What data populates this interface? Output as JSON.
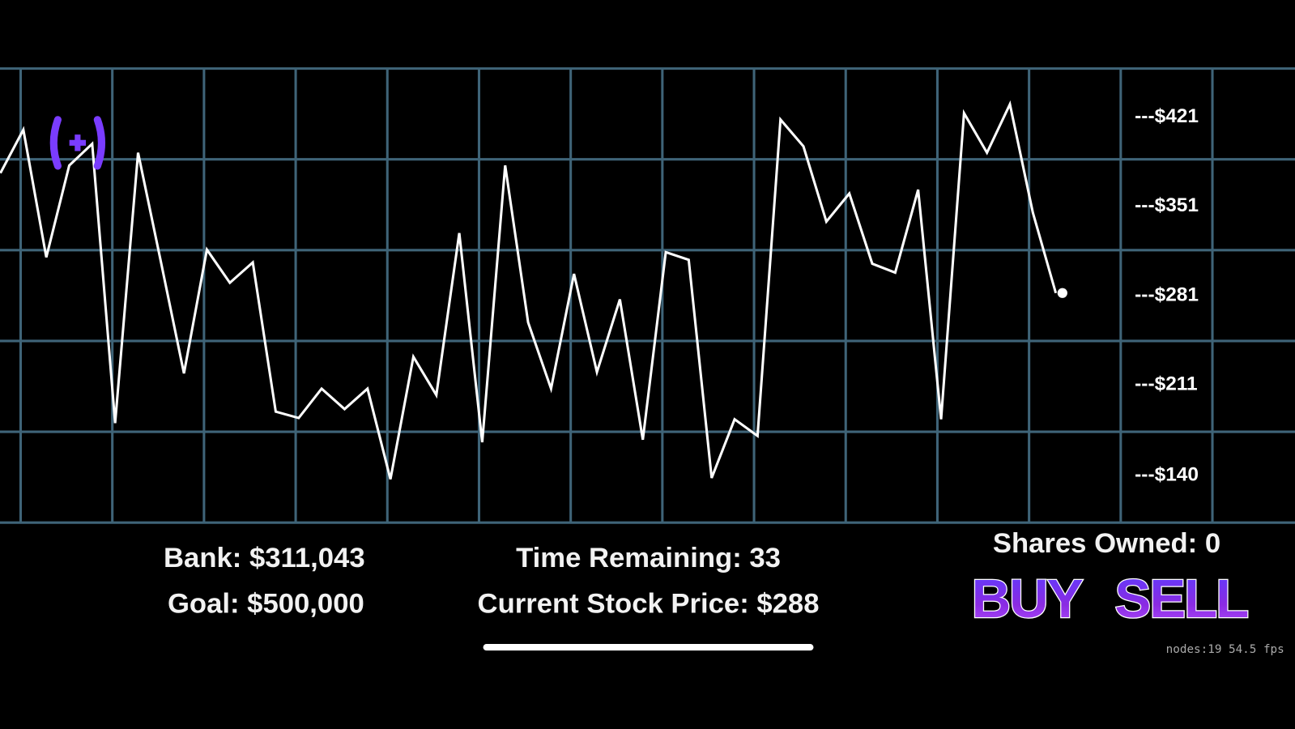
{
  "chart_data": {
    "type": "line",
    "color": "#ffffff",
    "values": [
      377,
      411,
      311,
      383,
      400,
      181,
      393,
      307,
      220,
      317,
      291,
      307,
      190,
      185,
      208,
      192,
      208,
      137,
      233,
      203,
      330,
      166,
      383,
      260,
      208,
      298,
      221,
      278,
      168,
      315,
      309,
      138,
      184,
      171,
      419,
      398,
      339,
      361,
      306,
      299,
      364,
      184,
      424,
      393,
      431,
      346,
      283
    ],
    "ylim": [
      103,
      459
    ],
    "yticks": [
      {
        "value": 421,
        "label": "---$421"
      },
      {
        "value": 351,
        "label": "---$351"
      },
      {
        "value": 281,
        "label": "---$281"
      },
      {
        "value": 211,
        "label": "---$211"
      },
      {
        "value": 140,
        "label": "---$140"
      }
    ],
    "grid": true
  },
  "hud": {
    "bank": "Bank: $311,043",
    "goal": "Goal: $500,000",
    "time_remaining": "Time Remaining: 33",
    "current_price": "Current Stock Price: $288",
    "shares_owned": "Shares Owned: 0",
    "buy": "BUY",
    "sell": "SELL",
    "debug": "nodes:19  54.5 fps"
  }
}
